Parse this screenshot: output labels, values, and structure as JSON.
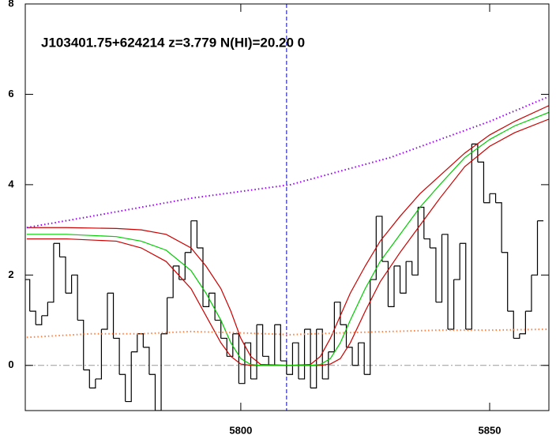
{
  "chart_data": {
    "type": "line",
    "title": "J103401.75+624214 z=3.779 N(HI)=20.20 0",
    "xlim": [
      5756.7,
      5861.9
    ],
    "ylim": [
      -1,
      8
    ],
    "xticks": [
      5800,
      5850
    ],
    "yticks": [
      0,
      2,
      4,
      6,
      8
    ],
    "hline": 0,
    "vline": 5809.2,
    "series": [
      {
        "color": "#000000",
        "style": "step",
        "x": [
          5757.0,
          5758.2,
          5759.4,
          5760.6,
          5761.8,
          5763.0,
          5764.2,
          5765.4,
          5766.6,
          5767.8,
          5769.0,
          5770.2,
          5771.4,
          5772.6,
          5773.8,
          5775.0,
          5776.2,
          5777.4,
          5778.6,
          5779.8,
          5781.0,
          5782.2,
          5783.4,
          5784.6,
          5785.8,
          5787.0,
          5788.2,
          5789.4,
          5790.6,
          5791.8,
          5793.0,
          5794.2,
          5795.4,
          5796.6,
          5797.8,
          5799.0,
          5800.2,
          5801.4,
          5802.6,
          5803.8,
          5805.0,
          5806.2,
          5807.4,
          5808.6,
          5809.8,
          5811.0,
          5812.2,
          5813.4,
          5814.6,
          5815.8,
          5817.0,
          5818.2,
          5819.4,
          5820.6,
          5821.8,
          5823.0,
          5824.2,
          5825.4,
          5826.6,
          5827.8,
          5829.0,
          5830.2,
          5831.4,
          5832.6,
          5833.8,
          5835.0,
          5836.2,
          5837.4,
          5838.6,
          5839.8,
          5841.0,
          5842.2,
          5843.4,
          5844.6,
          5845.8,
          5847.0,
          5848.2,
          5849.4,
          5850.6,
          5851.8,
          5853.0,
          5854.2,
          5855.4,
          5856.6,
          5857.8,
          5859.0,
          5860.2
        ],
        "values": [
          1.9,
          1.2,
          0.9,
          1.1,
          1.4,
          2.7,
          2.4,
          1.6,
          2.0,
          1.0,
          -0.1,
          -0.5,
          -0.3,
          0.8,
          1.6,
          0.6,
          -0.2,
          -0.8,
          0.3,
          0.7,
          0.4,
          -0.2,
          -1.0,
          0.7,
          1.5,
          2.2,
          1.9,
          2.5,
          3.2,
          2.6,
          1.3,
          1.6,
          1.0,
          0.6,
          0.2,
          0.7,
          -0.4,
          0.5,
          -0.3,
          0.9,
          0.2,
          0.0,
          0.9,
          0.1,
          -0.2,
          0.5,
          -0.3,
          0.8,
          -0.5,
          0.8,
          -0.3,
          0.3,
          1.4,
          0.9,
          0.4,
          0.0,
          0.5,
          -0.2,
          1.9,
          3.3,
          2.3,
          1.3,
          2.2,
          1.6,
          2.3,
          2.0,
          3.5,
          2.8,
          2.6,
          1.4,
          2.9,
          0.8,
          1.9,
          2.7,
          0.8,
          4.9,
          4.5,
          3.6,
          3.8,
          3.6,
          2.5,
          1.2,
          0.6,
          0.7,
          1.2,
          2.0,
          3.2
        ]
      },
      {
        "color": "#cc0000",
        "style": "solid",
        "x": [
          5757,
          5765,
          5775,
          5780,
          5785,
          5790,
          5793,
          5796,
          5798,
          5800,
          5802,
          5804,
          5810,
          5814,
          5816,
          5818,
          5820,
          5822,
          5825,
          5828,
          5832,
          5836,
          5840,
          5845,
          5850,
          5855,
          5861.9
        ],
        "values": [
          3.05,
          3.05,
          3.03,
          3.0,
          2.9,
          2.6,
          2.2,
          1.7,
          1.2,
          0.6,
          0.2,
          0.02,
          0,
          0.02,
          0.2,
          0.6,
          1.1,
          1.6,
          2.2,
          2.75,
          3.3,
          3.8,
          4.2,
          4.7,
          5.1,
          5.4,
          5.75
        ]
      },
      {
        "color": "#cc0000",
        "style": "solid",
        "x": [
          5757,
          5765,
          5775,
          5780,
          5785,
          5790,
          5793,
          5796,
          5798,
          5800,
          5802,
          5804,
          5810,
          5814,
          5816,
          5818,
          5820,
          5822,
          5825,
          5828,
          5832,
          5836,
          5840,
          5845,
          5850,
          5855,
          5861.9
        ],
        "values": [
          2.8,
          2.8,
          2.75,
          2.6,
          2.3,
          1.7,
          1.1,
          0.5,
          0.2,
          0.03,
          0,
          0,
          0,
          0,
          0,
          0.03,
          0.15,
          0.5,
          1.2,
          1.85,
          2.5,
          3.1,
          3.7,
          4.4,
          4.85,
          5.15,
          5.45
        ]
      },
      {
        "color": "#00cc00",
        "style": "solid",
        "x": [
          5757,
          5765,
          5775,
          5780,
          5785,
          5790,
          5793,
          5796,
          5798,
          5800,
          5802,
          5804,
          5810,
          5814,
          5816,
          5818,
          5820,
          5822,
          5825,
          5828,
          5832,
          5836,
          5840,
          5845,
          5850,
          5855,
          5861.9
        ],
        "values": [
          2.9,
          2.9,
          2.85,
          2.75,
          2.55,
          2.1,
          1.6,
          1.0,
          0.5,
          0.15,
          0.02,
          0,
          0,
          0,
          0.02,
          0.15,
          0.5,
          1.0,
          1.7,
          2.3,
          2.9,
          3.5,
          4.0,
          4.6,
          5.0,
          5.3,
          5.6
        ]
      },
      {
        "color": "#a000ff",
        "style": "dotted",
        "x": [
          5757,
          5770,
          5780,
          5790,
          5800,
          5810,
          5820,
          5830,
          5840,
          5850,
          5861.9
        ],
        "values": [
          3.05,
          3.3,
          3.5,
          3.7,
          3.85,
          4.0,
          4.3,
          4.6,
          5.0,
          5.4,
          5.95
        ]
      },
      {
        "color": "#ff8040",
        "style": "dotted",
        "x": [
          5757,
          5770,
          5780,
          5790,
          5800,
          5810,
          5820,
          5830,
          5840,
          5850,
          5861.9
        ],
        "values": [
          0.62,
          0.7,
          0.7,
          0.75,
          0.72,
          0.68,
          0.72,
          0.75,
          0.78,
          0.78,
          0.8
        ]
      }
    ]
  }
}
